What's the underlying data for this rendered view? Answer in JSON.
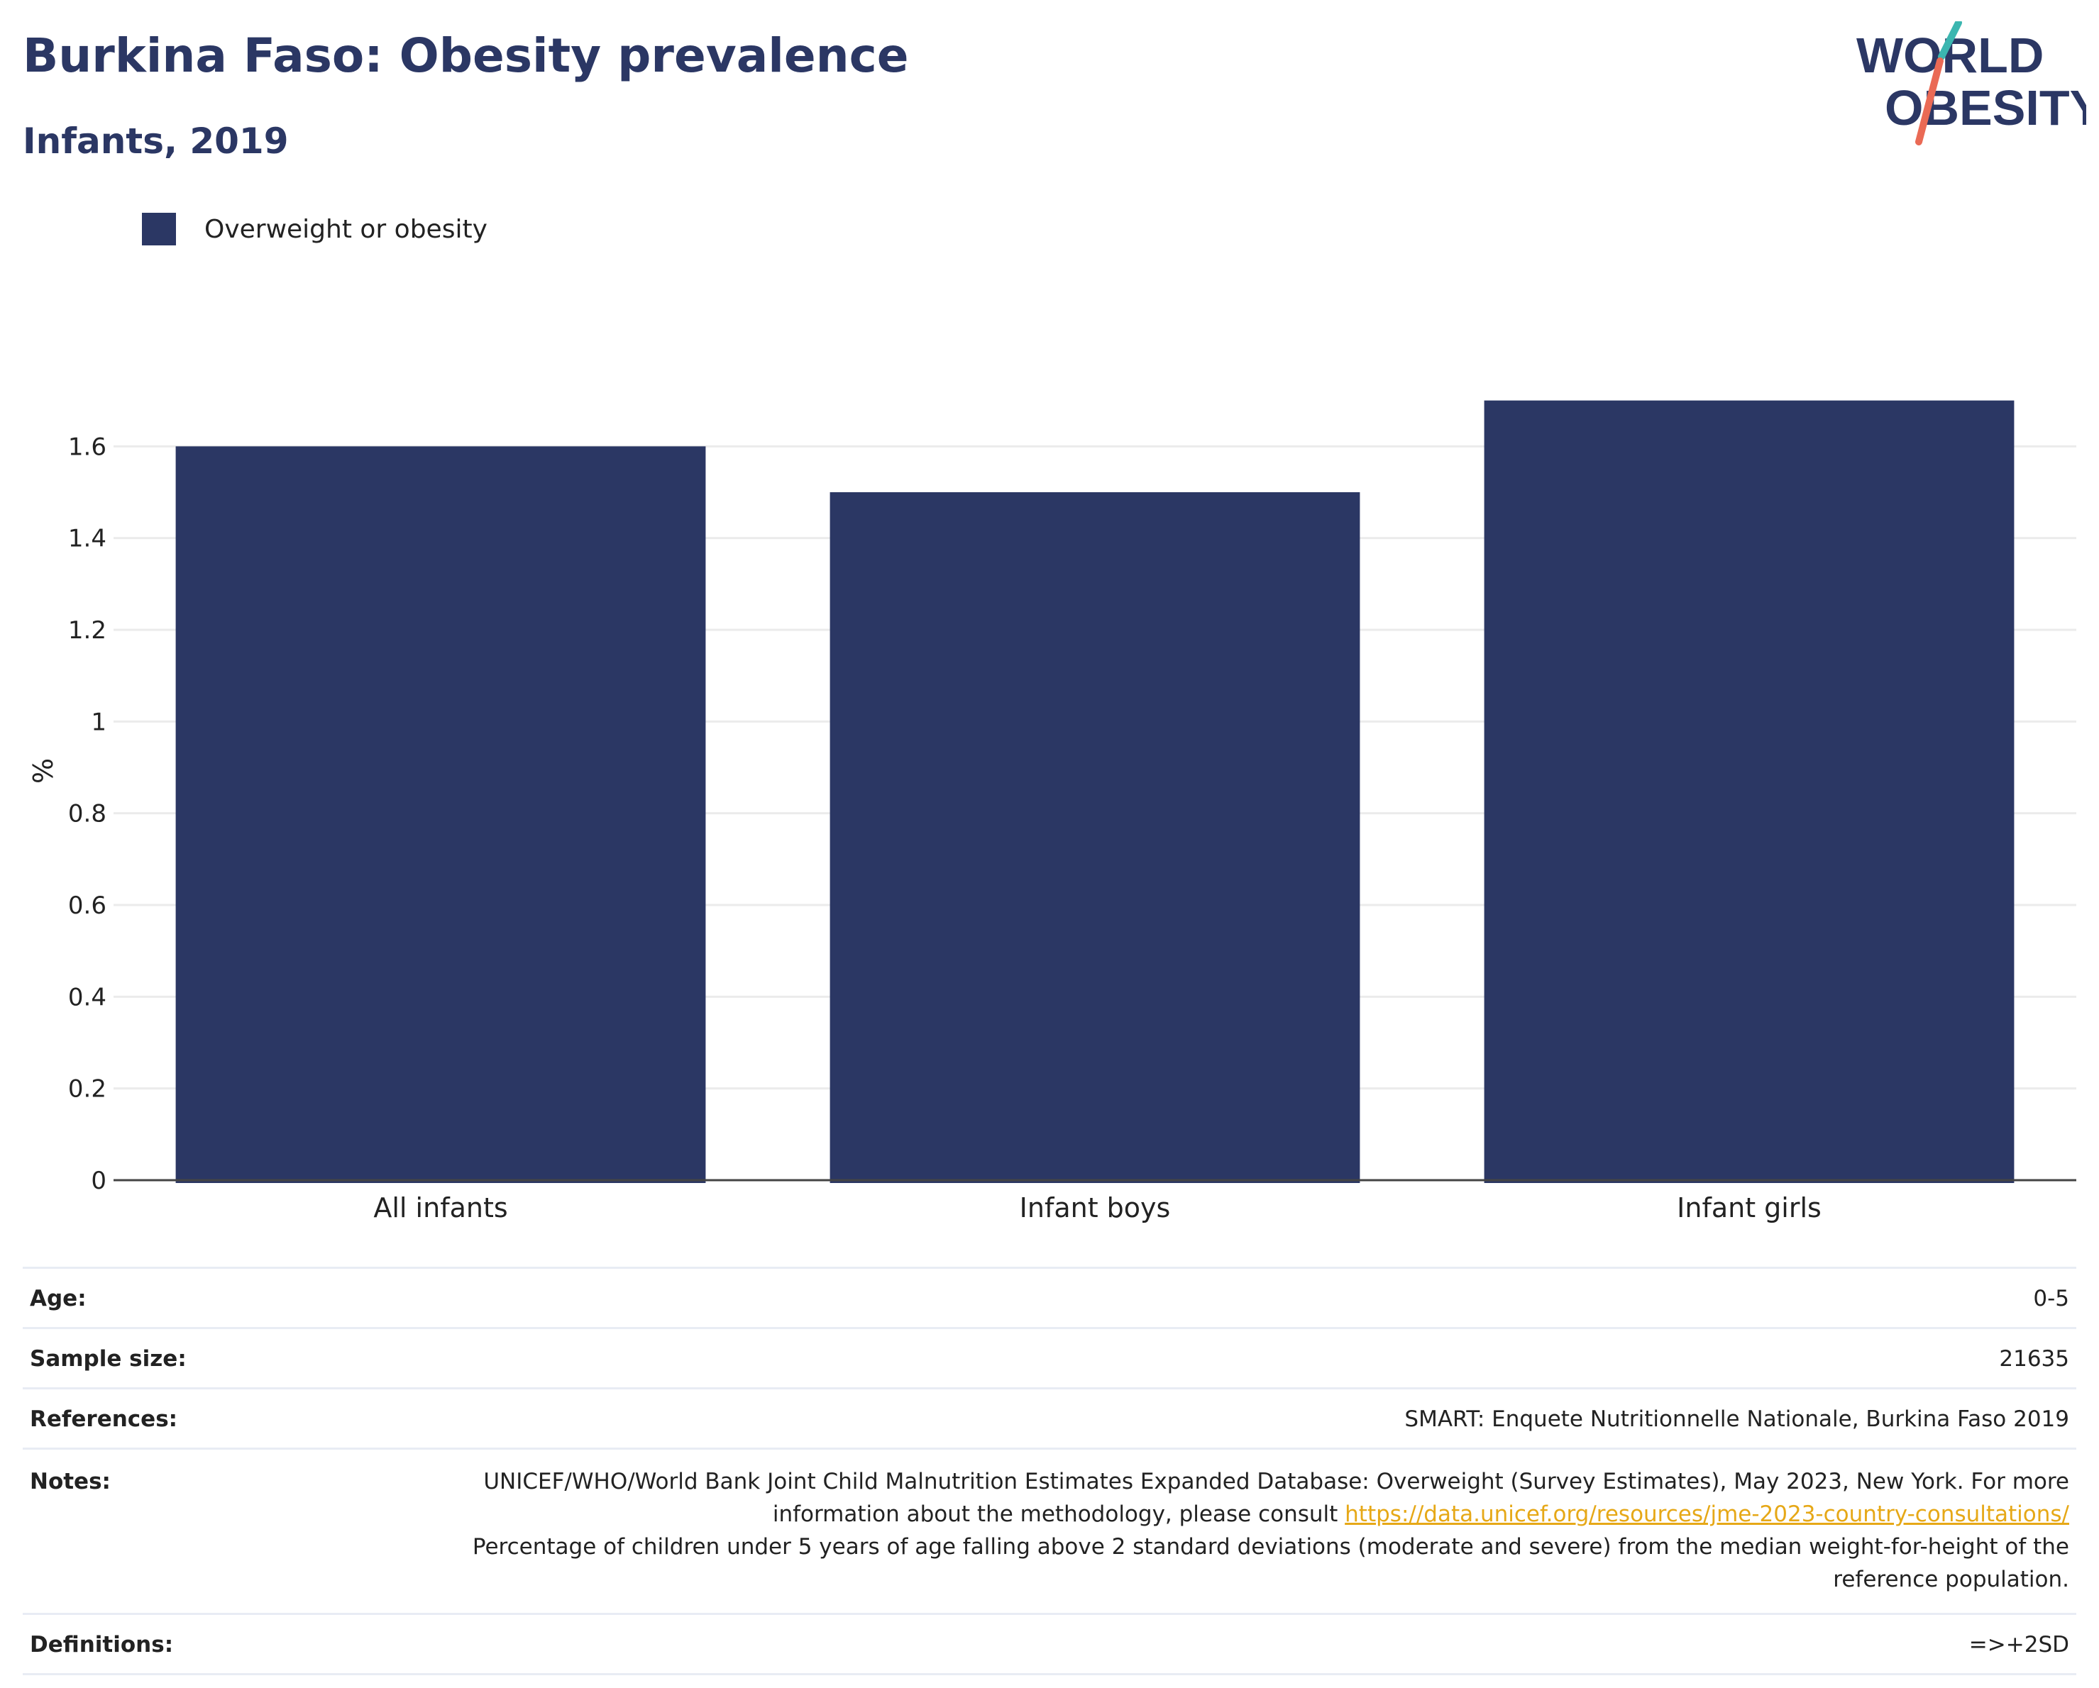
{
  "header": {
    "title": "Burkina Faso: Obesity prevalence",
    "subtitle": "Infants, 2019"
  },
  "logo": {
    "line1": "WORLD",
    "line2": "OBESITY",
    "colors": {
      "text": "#2b3764",
      "slash_top": "#3bb6b0",
      "slash_bottom": "#ea6a55"
    }
  },
  "legend": {
    "items": [
      {
        "label": "Overweight or obesity",
        "color": "#2b3764"
      }
    ]
  },
  "chart_data": {
    "type": "bar",
    "categories": [
      "All infants",
      "Infant boys",
      "Infant girls"
    ],
    "series": [
      {
        "name": "Overweight or obesity",
        "values": [
          1.6,
          1.5,
          1.7
        ]
      }
    ],
    "ylabel": "%",
    "xlabel": "",
    "ylim": [
      0,
      1.8
    ],
    "yticks": [
      0,
      0.2,
      0.4,
      0.6,
      0.8,
      1,
      1.2,
      1.4,
      1.6
    ],
    "ytick_labels": [
      "0",
      "0.2",
      "0.4",
      "0.6",
      "0.8",
      "1",
      "1.2",
      "1.4",
      "1.6"
    ],
    "grid": true,
    "legend_position": "top-left",
    "bar_color": "#2b3764"
  },
  "info_table": {
    "age": {
      "label": "Age:",
      "value": "0-5"
    },
    "sample_size": {
      "label": "Sample size:",
      "value": "21635"
    },
    "references": {
      "label": "References:",
      "value": "SMART: Enquete Nutritionnelle Nationale, Burkina Faso 2019"
    },
    "notes": {
      "label": "Notes:",
      "text_before_link": "UNICEF/WHO/World Bank Joint Child Malnutrition Estimates Expanded Database: Overweight (Survey Estimates), May 2023, New York. For more information about the methodology, please consult ",
      "link": "https://data.unicef.org/resources/jme-2023-country-consultations/",
      "text_after_link": "Percentage of children under 5 years of age falling above 2 standard deviations (moderate and severe) from the median weight-for-height of the reference population."
    },
    "definitions": {
      "label": "Definitions:",
      "value": "=>+2SD"
    }
  }
}
